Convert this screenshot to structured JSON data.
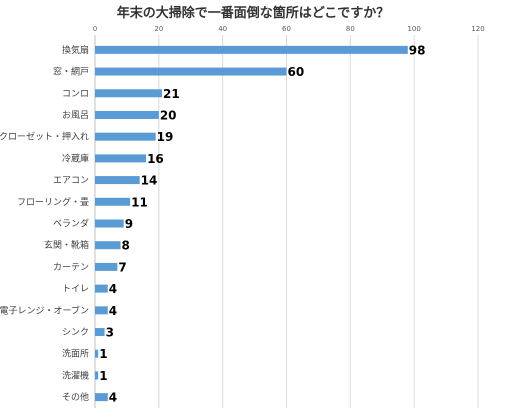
{
  "chart_data": {
    "type": "bar",
    "orientation": "horizontal",
    "title": "年末の大掃除で一番面倒な箇所はどこですか？",
    "xlabel": "",
    "ylabel": "",
    "xlim": [
      0,
      120
    ],
    "x_ticks": [
      "0",
      "20",
      "40",
      "60",
      "80",
      "100",
      "120"
    ],
    "grid": true,
    "categories": [
      "換気扇",
      "窓・網戸",
      "コンロ",
      "お風呂",
      "クローゼット・押入れ",
      "冷蔵庫",
      "エアコン",
      "フローリング・畳",
      "ベランダ",
      "玄関・靴箱",
      "カーテン",
      "トイレ",
      "電子レンジ・オーブン",
      "シンク",
      "洗面所",
      "洗濯機",
      "その他"
    ],
    "values": [
      98,
      60,
      21,
      20,
      19,
      16,
      14,
      11,
      9,
      8,
      7,
      4,
      4,
      3,
      1,
      1,
      4
    ],
    "value_labels": [
      "98",
      "60",
      "21",
      "20",
      "19",
      "16",
      "14",
      "11",
      "9",
      "8",
      "7",
      "4",
      "4",
      "3",
      "1",
      "1",
      "4"
    ],
    "bar_color": "#5b9bd5"
  }
}
